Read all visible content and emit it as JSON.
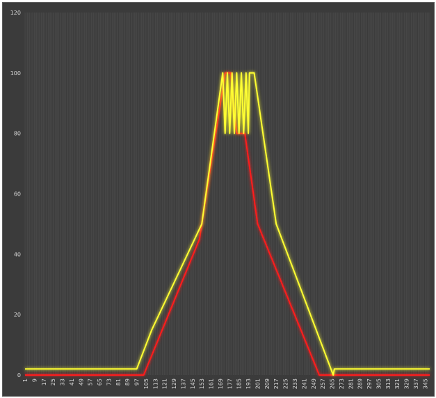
{
  "chart_data": {
    "type": "line",
    "title": "",
    "xlabel": "",
    "ylabel": "",
    "x_range": [
      1,
      349
    ],
    "x_tick_labels": [
      "1",
      "9",
      "17",
      "25",
      "33",
      "41",
      "49",
      "57",
      "65",
      "73",
      "81",
      "89",
      "97",
      "105",
      "113",
      "121",
      "129",
      "137",
      "145",
      "153",
      "161",
      "169",
      "177",
      "185",
      "193",
      "201",
      "209",
      "217",
      "225",
      "233",
      "241",
      "249",
      "257",
      "265",
      "273",
      "281",
      "289",
      "297",
      "305",
      "313",
      "321",
      "329",
      "337",
      "345"
    ],
    "ylim": [
      0,
      120
    ],
    "y_ticks": [
      0,
      20,
      40,
      60,
      80,
      100,
      120
    ],
    "grid": "vertical gridlines at every category",
    "legend": "none",
    "series": [
      {
        "color": "#ff1a1a",
        "points": [
          [
            1,
            0
          ],
          [
            99,
            0
          ],
          [
            103,
            0
          ],
          [
            151,
            45
          ],
          [
            173,
            100
          ],
          [
            178,
            100
          ],
          [
            180,
            90
          ],
          [
            183,
            80
          ],
          [
            190,
            80
          ],
          [
            201,
            50
          ],
          [
            254,
            0
          ],
          [
            349,
            0
          ]
        ]
      },
      {
        "color": "#ffff33",
        "points": [
          [
            1,
            2
          ],
          [
            97,
            2
          ],
          [
            110,
            15
          ],
          [
            153,
            50
          ],
          [
            171,
            100
          ],
          [
            173,
            80
          ],
          [
            175,
            100
          ],
          [
            177,
            80
          ],
          [
            179,
            100
          ],
          [
            181,
            80
          ],
          [
            183,
            100
          ],
          [
            185,
            80
          ],
          [
            187,
            100
          ],
          [
            189,
            80
          ],
          [
            191,
            100
          ],
          [
            193,
            80
          ],
          [
            194,
            100
          ],
          [
            198,
            100
          ],
          [
            217,
            50
          ],
          [
            266,
            0
          ],
          [
            267,
            2
          ],
          [
            349,
            2
          ]
        ]
      }
    ]
  }
}
